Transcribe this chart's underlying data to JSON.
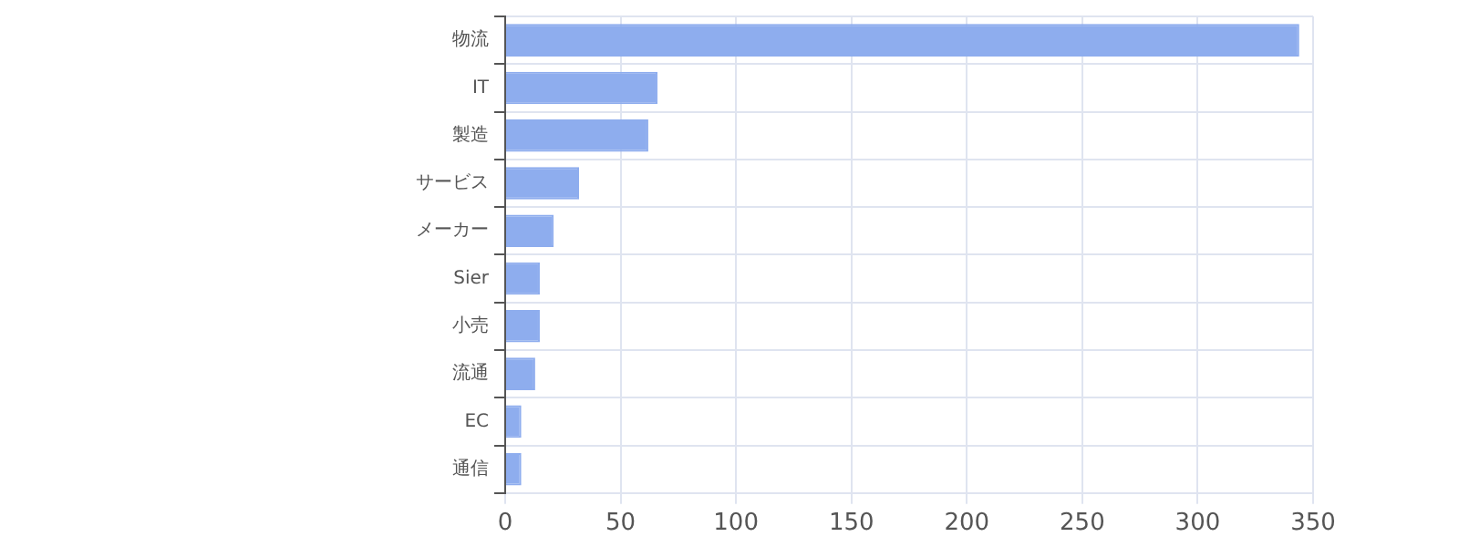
{
  "chart_data": {
    "type": "bar",
    "orientation": "horizontal",
    "categories": [
      "物流",
      "IT",
      "製造",
      "サービス",
      "メーカー",
      "Sier",
      "小売",
      "流通",
      "EC",
      "通信"
    ],
    "values": [
      344,
      66,
      62,
      32,
      21,
      15,
      15,
      13,
      7,
      7
    ],
    "color": "#8eadee",
    "xlim": [
      0,
      350
    ],
    "xticks": [
      0,
      50,
      100,
      150,
      200,
      250,
      300,
      350
    ],
    "grid": true,
    "legend": false
  }
}
